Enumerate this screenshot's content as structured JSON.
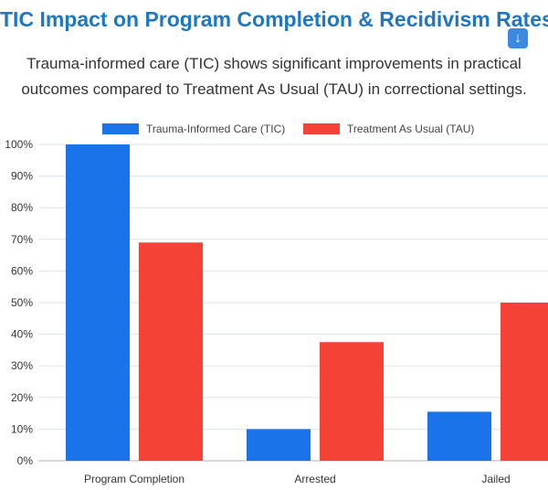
{
  "header": {
    "title": "TIC Impact on Program Completion & Recidivism Rates",
    "subtitle_line1": "Trauma-informed care (TIC) shows significant improvements in practical",
    "subtitle_line2": "outcomes compared to Treatment As Usual (TAU) in correctional settings.",
    "download_icon": "down-arrow-icon"
  },
  "chart_data": {
    "type": "bar",
    "categories": [
      "Program Completion",
      "Arrested",
      "Jailed"
    ],
    "series": [
      {
        "name": "Trauma-Informed Care (TIC)",
        "color": "#1a73e8",
        "values": [
          100,
          10,
          15.5
        ]
      },
      {
        "name": "Treatment As Usual (TAU)",
        "color": "#f44336",
        "values": [
          69,
          37.5,
          50
        ]
      }
    ],
    "ylim": [
      0,
      100
    ],
    "yticks": [
      "0%",
      "10%",
      "20%",
      "30%",
      "40%",
      "50%",
      "60%",
      "70%",
      "80%",
      "90%",
      "100%"
    ],
    "grid": true,
    "legend": "top"
  }
}
